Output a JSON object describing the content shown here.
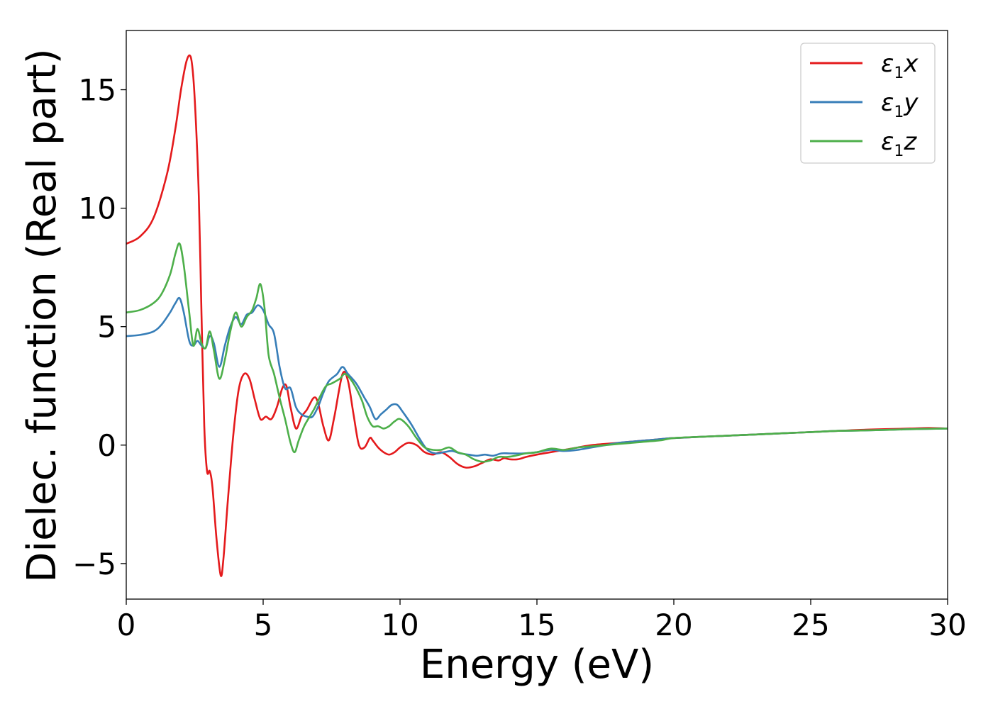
{
  "chart_data": {
    "type": "line",
    "title": "",
    "xlabel": "Energy (eV)",
    "ylabel": "Dielec. function (Real part)",
    "xlim": [
      0,
      30
    ],
    "ylim": [
      -6.5,
      17.5
    ],
    "xticks": [
      0,
      5,
      10,
      15,
      20,
      25,
      30
    ],
    "xtick_labels": [
      "0",
      "5",
      "10",
      "15",
      "20",
      "25",
      "30"
    ],
    "yticks": [
      -5,
      0,
      5,
      10,
      15
    ],
    "ytick_labels": [
      "−5",
      "0",
      "5",
      "10",
      "15"
    ],
    "grid": false,
    "legend_position": "top-right",
    "series": [
      {
        "name": "ε1x",
        "legend_base": "ε",
        "legend_sub": "1",
        "legend_var": "x",
        "color": "#e41a1c",
        "x": [
          0,
          0.5,
          1.0,
          1.5,
          1.8,
          2.0,
          2.2,
          2.35,
          2.45,
          2.55,
          2.65,
          2.75,
          2.85,
          2.95,
          3.05,
          3.15,
          3.3,
          3.45,
          3.55,
          3.7,
          3.9,
          4.1,
          4.3,
          4.5,
          4.7,
          4.9,
          5.1,
          5.3,
          5.5,
          5.7,
          5.85,
          6.0,
          6.2,
          6.4,
          6.6,
          6.85,
          7.0,
          7.2,
          7.4,
          7.6,
          7.9,
          8.1,
          8.3,
          8.5,
          8.7,
          8.9,
          9.0,
          9.2,
          9.4,
          9.6,
          9.8,
          10.0,
          10.3,
          10.6,
          10.9,
          11.2,
          11.5,
          11.8,
          12.1,
          12.4,
          12.7,
          13.0,
          13.3,
          13.6,
          13.8,
          14.0,
          14.3,
          14.6,
          15.0,
          15.5,
          16.0,
          16.5,
          17.0,
          17.5,
          18.0,
          18.5,
          19.0,
          19.5,
          20.0,
          21.0,
          22.0,
          23.0,
          24.0,
          25.0,
          26.0,
          27.0,
          28.0,
          28.7,
          29.3,
          30.0
        ],
        "y": [
          8.5,
          8.8,
          9.6,
          11.5,
          13.4,
          15.0,
          16.2,
          16.4,
          15.5,
          13.5,
          10.5,
          5.5,
          0.8,
          -1.1,
          -1.1,
          -1.8,
          -4.0,
          -5.5,
          -4.8,
          -2.5,
          0.3,
          2.3,
          3.0,
          2.8,
          1.9,
          1.1,
          1.2,
          1.1,
          1.6,
          2.4,
          2.5,
          1.6,
          0.7,
          1.2,
          1.5,
          2.0,
          1.8,
          0.8,
          0.2,
          1.2,
          3.0,
          2.7,
          1.3,
          0.0,
          -0.1,
          0.3,
          0.2,
          -0.1,
          -0.3,
          -0.4,
          -0.3,
          -0.1,
          0.1,
          0.0,
          -0.3,
          -0.4,
          -0.3,
          -0.5,
          -0.8,
          -0.95,
          -0.9,
          -0.75,
          -0.6,
          -0.65,
          -0.55,
          -0.6,
          -0.6,
          -0.5,
          -0.4,
          -0.3,
          -0.2,
          -0.1,
          0.0,
          0.05,
          0.1,
          0.15,
          0.2,
          0.25,
          0.3,
          0.35,
          0.4,
          0.45,
          0.5,
          0.55,
          0.6,
          0.65,
          0.68,
          0.7,
          0.72,
          0.7
        ]
      },
      {
        "name": "ε1y",
        "legend_base": "ε",
        "legend_sub": "1",
        "legend_var": "y",
        "color": "#377eb8",
        "x": [
          0,
          0.5,
          1.0,
          1.3,
          1.6,
          1.8,
          1.95,
          2.1,
          2.3,
          2.45,
          2.6,
          2.75,
          2.9,
          3.05,
          3.2,
          3.4,
          3.6,
          3.8,
          4.0,
          4.2,
          4.4,
          4.6,
          4.8,
          5.0,
          5.2,
          5.4,
          5.6,
          5.8,
          6.0,
          6.2,
          6.4,
          6.6,
          6.8,
          7.0,
          7.2,
          7.4,
          7.7,
          7.9,
          8.1,
          8.4,
          8.7,
          8.9,
          9.1,
          9.3,
          9.5,
          9.7,
          9.9,
          10.1,
          10.4,
          10.7,
          11.0,
          11.3,
          11.6,
          11.9,
          12.2,
          12.5,
          12.8,
          13.1,
          13.4,
          13.7,
          14.0,
          14.5,
          15.0,
          15.5,
          16.0,
          16.5,
          17.0,
          17.5,
          18.0,
          18.5,
          19.0,
          19.5,
          20.0,
          21.0,
          22.0,
          23.0,
          24.0,
          25.0,
          26.0,
          27.0,
          28.0,
          29.0,
          30.0
        ],
        "y": [
          4.6,
          4.65,
          4.8,
          5.1,
          5.6,
          6.0,
          6.2,
          5.6,
          4.4,
          4.2,
          4.4,
          4.2,
          4.1,
          4.6,
          4.3,
          3.3,
          4.2,
          5.0,
          5.4,
          5.1,
          5.5,
          5.6,
          5.9,
          5.7,
          5.1,
          4.7,
          3.3,
          2.4,
          2.4,
          1.6,
          1.3,
          1.2,
          1.2,
          1.6,
          2.2,
          2.7,
          3.0,
          3.3,
          3.0,
          2.6,
          2.0,
          1.6,
          1.1,
          1.3,
          1.5,
          1.7,
          1.7,
          1.4,
          0.9,
          0.3,
          -0.2,
          -0.35,
          -0.3,
          -0.25,
          -0.35,
          -0.4,
          -0.45,
          -0.4,
          -0.45,
          -0.35,
          -0.35,
          -0.35,
          -0.3,
          -0.2,
          -0.25,
          -0.2,
          -0.1,
          0.0,
          0.1,
          0.15,
          0.2,
          0.25,
          0.3,
          0.35,
          0.4,
          0.45,
          0.5,
          0.55,
          0.6,
          0.62,
          0.65,
          0.68,
          0.7
        ]
      },
      {
        "name": "ε1z",
        "legend_base": "ε",
        "legend_sub": "1",
        "legend_var": "z",
        "color": "#4daf4a",
        "x": [
          0,
          0.5,
          1.0,
          1.3,
          1.6,
          1.8,
          1.95,
          2.1,
          2.3,
          2.45,
          2.6,
          2.75,
          2.9,
          3.05,
          3.2,
          3.4,
          3.6,
          3.8,
          4.0,
          4.2,
          4.4,
          4.6,
          4.75,
          4.9,
          5.05,
          5.2,
          5.4,
          5.6,
          5.8,
          6.0,
          6.15,
          6.3,
          6.5,
          6.7,
          6.9,
          7.1,
          7.3,
          7.5,
          7.8,
          8.0,
          8.3,
          8.6,
          8.8,
          9.0,
          9.2,
          9.4,
          9.6,
          9.8,
          10.0,
          10.3,
          10.6,
          10.9,
          11.2,
          11.5,
          11.8,
          12.1,
          12.4,
          12.7,
          13.0,
          13.3,
          13.6,
          13.9,
          14.2,
          14.6,
          15.0,
          15.5,
          16.0,
          16.5,
          17.0,
          17.5,
          18.0,
          18.5,
          19.0,
          19.5,
          20.0,
          21.0,
          22.0,
          23.0,
          24.0,
          25.0,
          26.0,
          27.0,
          28.0,
          29.0,
          30.0
        ],
        "y": [
          5.6,
          5.7,
          6.0,
          6.4,
          7.2,
          8.1,
          8.5,
          7.6,
          5.6,
          4.2,
          4.9,
          4.3,
          4.1,
          4.8,
          4.0,
          2.8,
          3.6,
          4.8,
          5.6,
          5.0,
          5.4,
          5.7,
          6.2,
          6.8,
          5.8,
          3.8,
          3.0,
          2.0,
          1.1,
          0.1,
          -0.3,
          0.2,
          0.8,
          1.2,
          1.6,
          2.1,
          2.5,
          2.6,
          2.8,
          3.0,
          2.6,
          1.9,
          1.2,
          0.8,
          0.8,
          0.7,
          0.8,
          1.0,
          1.1,
          0.8,
          0.3,
          -0.1,
          -0.2,
          -0.2,
          -0.1,
          -0.3,
          -0.4,
          -0.6,
          -0.7,
          -0.65,
          -0.5,
          -0.5,
          -0.45,
          -0.35,
          -0.3,
          -0.15,
          -0.2,
          -0.1,
          -0.05,
          0.0,
          0.05,
          0.1,
          0.15,
          0.2,
          0.3,
          0.35,
          0.4,
          0.45,
          0.5,
          0.55,
          0.6,
          0.62,
          0.65,
          0.68,
          0.7
        ]
      }
    ]
  }
}
